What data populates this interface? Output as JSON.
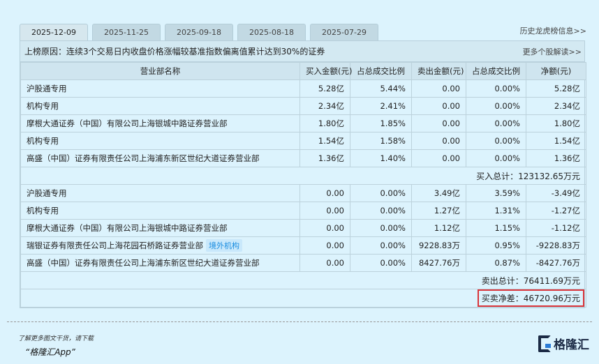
{
  "tabs": [
    "2025-12-09",
    "2025-11-25",
    "2025-09-18",
    "2025-08-18",
    "2025-07-29"
  ],
  "history_link": "历史龙虎榜信息>>",
  "reason_label": "上榜原因：",
  "reason_text": "连续3个交易日内收盘价格涨幅较基准指数偏离值累计达到30%的证券",
  "more_link": "更多个股解读>>",
  "columns": [
    "营业部名称",
    "买入金额(元)",
    "占总成交比例",
    "卖出金额(元)",
    "占总成交比例",
    "净额(元)"
  ],
  "buy_rows": [
    [
      "沪股通专用",
      "5.28亿",
      "5.44%",
      "0.00",
      "0.00%",
      "5.28亿"
    ],
    [
      "机构专用",
      "2.34亿",
      "2.41%",
      "0.00",
      "0.00%",
      "2.34亿"
    ],
    [
      "摩根大通证券（中国）有限公司上海银城中路证券营业部",
      "1.80亿",
      "1.85%",
      "0.00",
      "0.00%",
      "1.80亿"
    ],
    [
      "机构专用",
      "1.54亿",
      "1.58%",
      "0.00",
      "0.00%",
      "1.54亿"
    ],
    [
      "高盛（中国）证券有限责任公司上海浦东新区世纪大道证券营业部",
      "1.36亿",
      "1.40%",
      "0.00",
      "0.00%",
      "1.36亿"
    ]
  ],
  "buy_total": "买入总计：123132.65万元",
  "sell_rows": [
    [
      "沪股通专用",
      "0.00",
      "0.00%",
      "3.49亿",
      "3.59%",
      "-3.49亿"
    ],
    [
      "机构专用",
      "0.00",
      "0.00%",
      "1.27亿",
      "1.31%",
      "-1.27亿"
    ],
    [
      "摩根大通证券（中国）有限公司上海银城中路证券营业部",
      "0.00",
      "0.00%",
      "1.12亿",
      "1.15%",
      "-1.12亿"
    ],
    [
      "瑞银证券有限责任公司上海花园石桥路证券营业部",
      "0.00",
      "0.00%",
      "9228.83万",
      "0.95%",
      "-9228.83万"
    ],
    [
      "高盛（中国）证券有限责任公司上海浦东新区世纪大道证券营业部",
      "0.00",
      "0.00%",
      "8427.76万",
      "0.87%",
      "-8427.76万"
    ]
  ],
  "sell_tag": {
    "row": 3,
    "text": "境外机构"
  },
  "sell_total": "卖出总计：76411.69万元",
  "net_total": "买卖净差：46720.96万元",
  "footer": {
    "line1": "了解更多图文干货，请下载",
    "line2": "“格隆汇App”",
    "logo": "格隆汇"
  },
  "colors": {
    "background": "#dcf3fd",
    "header": "#cfe5ef",
    "highlight": "#d9343a",
    "tag": "#1a8de0"
  }
}
